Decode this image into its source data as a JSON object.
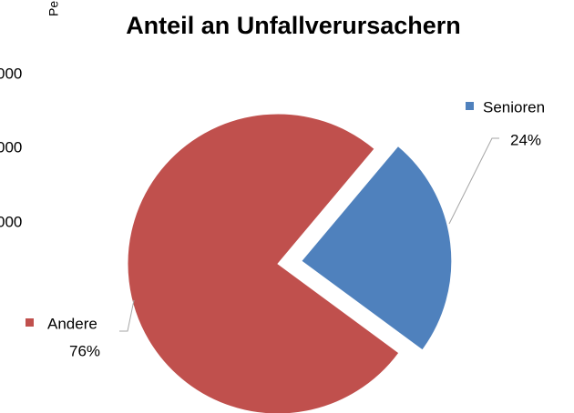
{
  "chart_data": {
    "type": "pie",
    "title": "Anteil an Unfallverursachern",
    "categories": [
      "Senioren",
      "Andere"
    ],
    "values": [
      24,
      76
    ],
    "value_labels": [
      "24%",
      "76%"
    ],
    "colors": [
      "#4f81bd",
      "#c0504d"
    ],
    "exploded": [
      true,
      false
    ]
  },
  "background_chart": {
    "axis_label": "Pe",
    "tick_labels": [
      "000",
      "000",
      "000"
    ]
  }
}
